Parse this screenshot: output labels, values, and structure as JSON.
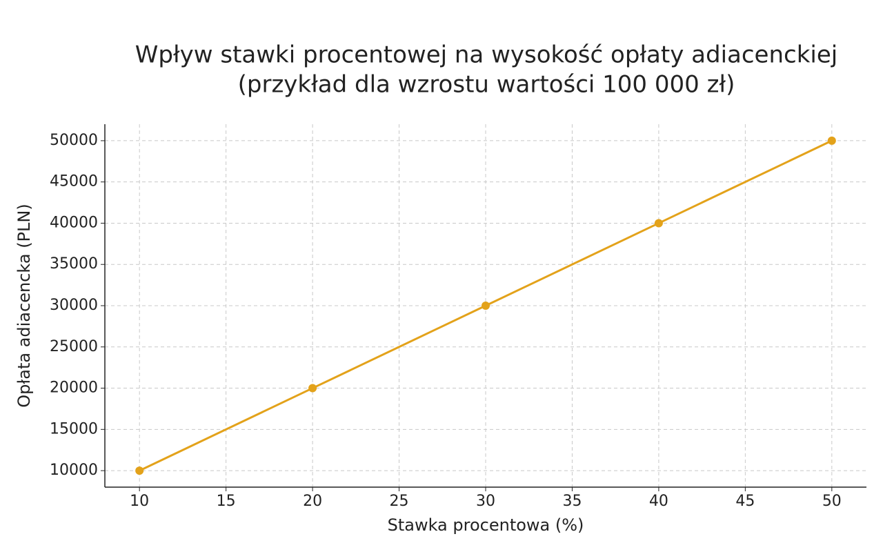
{
  "chart_data": {
    "type": "line",
    "title": [
      "Wpływ stawki procentowej na wysokość opłaty adiacenckiej",
      "(przykład dla wzrostu wartości 100 000 zł)"
    ],
    "x_label": "Stawka procentowa (%)",
    "y_label": "Opłata adiacencka (PLN)",
    "x": [
      10,
      20,
      30,
      40,
      50
    ],
    "series": [
      {
        "name": "Opłata adiacencka",
        "color": "#e3a21a",
        "values": [
          10000,
          20000,
          30000,
          40000,
          50000
        ]
      }
    ],
    "xlim": [
      8,
      52
    ],
    "xticks": [
      10,
      15,
      20,
      25,
      30,
      35,
      40,
      45,
      50
    ],
    "ylim": [
      8000,
      52000
    ],
    "yticks": [
      10000,
      15000,
      20000,
      25000,
      30000,
      35000,
      40000,
      45000,
      50000
    ],
    "grid": true
  }
}
